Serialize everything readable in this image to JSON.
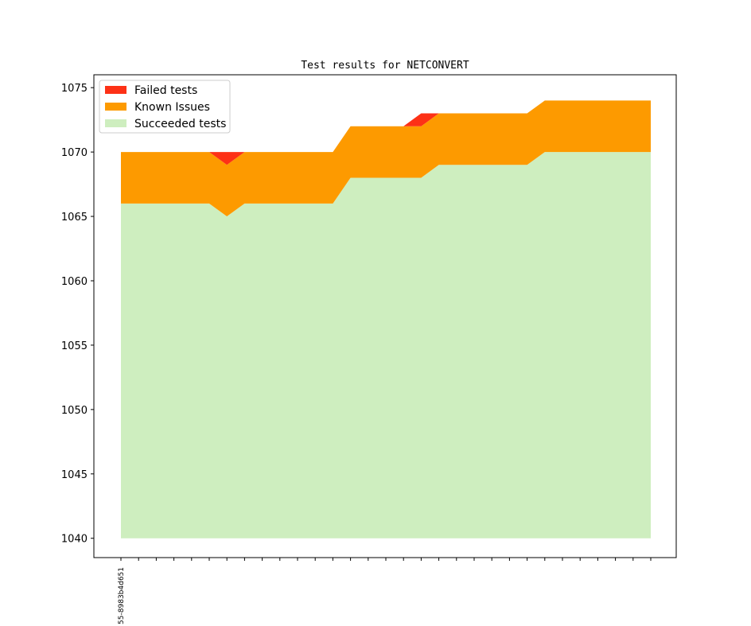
{
  "chart_data": {
    "type": "area",
    "title": "Test results for NETCONVERT",
    "xlabel": "",
    "ylabel": "",
    "ylim": [
      1038.5,
      1076
    ],
    "yticks": [
      1040,
      1045,
      1050,
      1055,
      1060,
      1065,
      1070,
      1075
    ],
    "y_baseline": 1040,
    "x_tick_labels": [
      "55-8983b4d651"
    ],
    "x_count": 31,
    "grid": false,
    "legend_position": "top-left",
    "series": [
      {
        "name": "Succeeded tests",
        "color": "#ceeebf",
        "values": [
          1066,
          1066,
          1066,
          1066,
          1066,
          1066,
          1065,
          1066,
          1066,
          1066,
          1066,
          1066,
          1066,
          1068,
          1068,
          1068,
          1068,
          1068,
          1069,
          1069,
          1069,
          1069,
          1069,
          1069,
          1070,
          1070,
          1070,
          1070,
          1070,
          1070,
          1070
        ]
      },
      {
        "name": "Known Issues",
        "color": "#fd9a00",
        "values": [
          4,
          4,
          4,
          4,
          4,
          4,
          4,
          4,
          4,
          4,
          4,
          4,
          4,
          4,
          4,
          4,
          4,
          4,
          4,
          4,
          4,
          4,
          4,
          4,
          4,
          4,
          4,
          4,
          4,
          4,
          4
        ]
      },
      {
        "name": "Failed tests",
        "color": "#fd3116",
        "values": [
          0,
          0,
          0,
          0,
          0,
          0,
          1,
          0,
          0,
          0,
          0,
          0,
          0,
          0,
          0,
          0,
          0,
          1,
          0,
          0,
          0,
          0,
          0,
          0,
          0,
          0,
          0,
          0,
          0,
          0,
          0
        ]
      }
    ],
    "legend": [
      "Failed tests",
      "Known Issues",
      "Succeeded tests"
    ]
  }
}
